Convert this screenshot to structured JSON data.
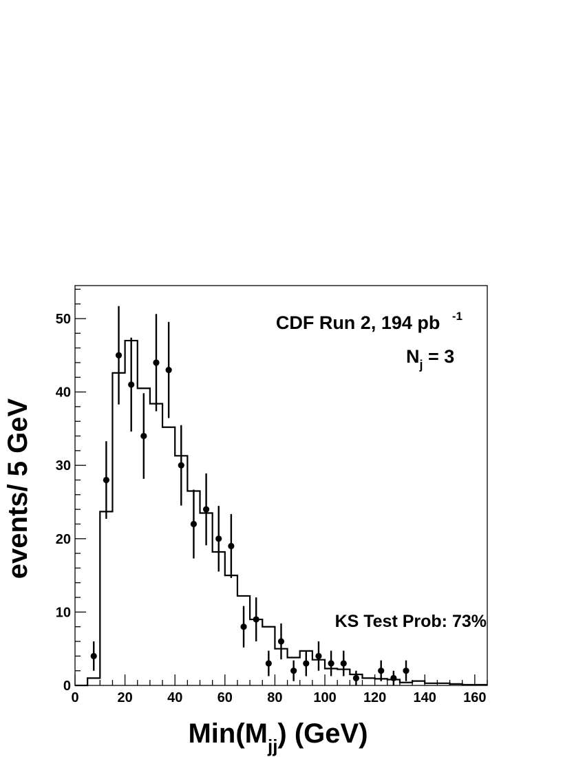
{
  "chart_data": {
    "type": "scatter",
    "xlabel": "Min(M",
    "xlabel_sub": "jj",
    "xlabel_tail": ") (GeV)",
    "ylabel": "events/ 5 GeV",
    "xlim": [
      0,
      165
    ],
    "ylim": [
      0,
      54.5
    ],
    "x_ticks": [
      0,
      20,
      40,
      60,
      80,
      100,
      120,
      140,
      160
    ],
    "y_ticks": [
      0,
      10,
      20,
      30,
      40,
      50
    ],
    "grid": false,
    "annotations": {
      "title_main": "CDF Run 2, 194 pb",
      "title_sup": "-1",
      "nj_main": "N",
      "nj_sub": "j",
      "nj_tail": " = 3",
      "ks": "KS Test Prob: 73%"
    },
    "series": [
      {
        "style": "histogram",
        "bin_width": 5,
        "x": [
          0,
          5,
          10,
          15,
          20,
          25,
          30,
          35,
          40,
          45,
          50,
          55,
          60,
          65,
          70,
          75,
          80,
          85,
          90,
          95,
          100,
          105,
          110,
          115,
          120,
          125,
          130,
          135,
          140,
          145,
          150,
          155,
          160
        ],
        "values": [
          0,
          1.0,
          23.7,
          42.6,
          47.0,
          40.5,
          38.4,
          35.2,
          31.3,
          26.5,
          23.5,
          18.2,
          15.0,
          12.2,
          9.0,
          8.0,
          5.0,
          3.8,
          4.7,
          3.5,
          2.3,
          2.2,
          1.5,
          1.0,
          0.9,
          0.8,
          0.4,
          0.6,
          0.3,
          0.3,
          0.2,
          0.1,
          0.1
        ]
      },
      {
        "style": "points_with_errors",
        "x": [
          7.5,
          12.5,
          17.5,
          22.5,
          27.5,
          32.5,
          37.5,
          42.5,
          47.5,
          52.5,
          57.5,
          62.5,
          67.5,
          72.5,
          77.5,
          82.5,
          87.5,
          92.5,
          97.5,
          102.5,
          107.5,
          112.5,
          122.5,
          127.5,
          132.5
        ],
        "y": [
          4,
          28,
          45,
          41,
          34,
          44,
          43,
          30,
          22,
          24,
          20,
          19,
          8,
          9,
          3,
          6,
          2,
          3,
          4,
          3,
          3,
          1,
          2,
          1,
          2
        ]
      }
    ]
  },
  "colors": {
    "ink": "#000000",
    "background": "#ffffff"
  }
}
